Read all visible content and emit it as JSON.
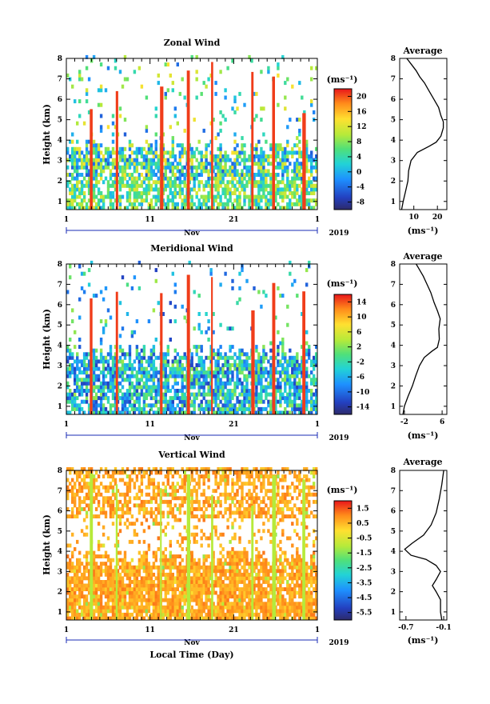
{
  "chart_data": [
    {
      "type": "heatmap",
      "title": "Zonal Wind",
      "xlabel": "",
      "ylabel": "Height (km)",
      "x_ticks": [
        "1",
        "11",
        "21",
        "1"
      ],
      "month_label": "Nov",
      "year_label": "2019",
      "y_ticks": [
        "1",
        "2",
        "3",
        "4",
        "5",
        "6",
        "7",
        "8"
      ],
      "ylim": [
        0.6,
        8
      ],
      "xlim_days": [
        1,
        31
      ],
      "colorbar_unit": "(ms⁻¹)",
      "colorbar_ticks": [
        "20",
        "16",
        "12",
        "8",
        "4",
        "0",
        "-4",
        "-8"
      ],
      "colorbar_range": [
        -10,
        22
      ],
      "profile": {
        "title": "Average",
        "unit_label": "(ms⁻¹)",
        "x_ticks": [
          "10",
          "20"
        ],
        "xlim": [
          4,
          24
        ],
        "y_ticks": [
          "1",
          "2",
          "3",
          "4",
          "5",
          "6",
          "7",
          "8"
        ],
        "points": [
          [
            4.8,
            0.6
          ],
          [
            5.5,
            1.0
          ],
          [
            6.5,
            1.5
          ],
          [
            7.5,
            2.0
          ],
          [
            7.8,
            2.5
          ],
          [
            8.8,
            3.0
          ],
          [
            11.5,
            3.4
          ],
          [
            16.5,
            3.7
          ],
          [
            19.5,
            3.9
          ],
          [
            21.5,
            4.2
          ],
          [
            22.5,
            4.6
          ],
          [
            22.5,
            4.9
          ],
          [
            21.5,
            5.2
          ],
          [
            20.5,
            5.6
          ],
          [
            18.5,
            6.0
          ],
          [
            16.5,
            6.4
          ],
          [
            14.5,
            6.8
          ],
          [
            12.5,
            7.1
          ],
          [
            11.0,
            7.4
          ],
          [
            9.0,
            7.7
          ],
          [
            7.0,
            8.0
          ]
        ]
      }
    },
    {
      "type": "heatmap",
      "title": "Meridional Wind",
      "xlabel": "",
      "ylabel": "Height (km)",
      "x_ticks": [
        "1",
        "11",
        "21",
        "1"
      ],
      "month_label": "Nov",
      "year_label": "2019",
      "y_ticks": [
        "1",
        "2",
        "3",
        "4",
        "5",
        "6",
        "7",
        "8"
      ],
      "ylim": [
        0.6,
        8
      ],
      "xlim_days": [
        1,
        31
      ],
      "colorbar_unit": "(ms⁻¹)",
      "colorbar_ticks": [
        "14",
        "10",
        "6",
        "2",
        "-2",
        "-6",
        "-10",
        "-14"
      ],
      "colorbar_range": [
        -16,
        16
      ],
      "profile": {
        "title": "Average",
        "unit_label": "(ms⁻¹)",
        "x_ticks": [
          "-2",
          "6"
        ],
        "xlim": [
          -3,
          7
        ],
        "y_ticks": [
          "1",
          "2",
          "3",
          "4",
          "5",
          "6",
          "7",
          "8"
        ],
        "points": [
          [
            -2.3,
            0.6
          ],
          [
            -2.0,
            1.0
          ],
          [
            -1.2,
            1.5
          ],
          [
            -0.3,
            2.0
          ],
          [
            0.4,
            2.5
          ],
          [
            1.2,
            3.0
          ],
          [
            2.2,
            3.4
          ],
          [
            3.8,
            3.7
          ],
          [
            5.0,
            3.9
          ],
          [
            5.4,
            4.3
          ],
          [
            5.3,
            4.8
          ],
          [
            5.6,
            5.3
          ],
          [
            5.0,
            5.7
          ],
          [
            4.3,
            6.1
          ],
          [
            3.6,
            6.6
          ],
          [
            2.8,
            7.0
          ],
          [
            2.0,
            7.4
          ],
          [
            1.0,
            7.8
          ],
          [
            0.5,
            8.0
          ]
        ]
      }
    },
    {
      "type": "heatmap",
      "title": "Vertical Wind",
      "xlabel": "Local Time (Day)",
      "ylabel": "Height (km)",
      "x_ticks": [
        "1",
        "11",
        "21",
        "1"
      ],
      "month_label": "Nov",
      "year_label": "2019",
      "y_ticks": [
        "1",
        "2",
        "3",
        "4",
        "5",
        "6",
        "7",
        "8"
      ],
      "ylim": [
        0.6,
        8
      ],
      "xlim_days": [
        1,
        31
      ],
      "colorbar_unit": "(ms⁻¹)",
      "colorbar_ticks": [
        "1.5",
        "0.5",
        "-0.5",
        "-1.5",
        "-2.5",
        "-3.5",
        "-4.5",
        "-5.5"
      ],
      "colorbar_range": [
        -6,
        2
      ],
      "profile": {
        "title": "Average",
        "unit_label": "(ms⁻¹)",
        "x_ticks": [
          "-0.7",
          "-0.1"
        ],
        "xlim": [
          -0.8,
          -0.05
        ],
        "y_ticks": [
          "1",
          "2",
          "3",
          "4",
          "5",
          "6",
          "7",
          "8"
        ],
        "points": [
          [
            -0.13,
            0.6
          ],
          [
            -0.15,
            1.0
          ],
          [
            -0.15,
            1.6
          ],
          [
            -0.22,
            2.0
          ],
          [
            -0.28,
            2.3
          ],
          [
            -0.22,
            2.6
          ],
          [
            -0.15,
            3.0
          ],
          [
            -0.22,
            3.3
          ],
          [
            -0.38,
            3.6
          ],
          [
            -0.62,
            3.8
          ],
          [
            -0.72,
            4.1
          ],
          [
            -0.6,
            4.4
          ],
          [
            -0.42,
            4.8
          ],
          [
            -0.3,
            5.3
          ],
          [
            -0.22,
            5.9
          ],
          [
            -0.17,
            6.6
          ],
          [
            -0.13,
            7.3
          ],
          [
            -0.1,
            8.0
          ]
        ]
      }
    }
  ]
}
